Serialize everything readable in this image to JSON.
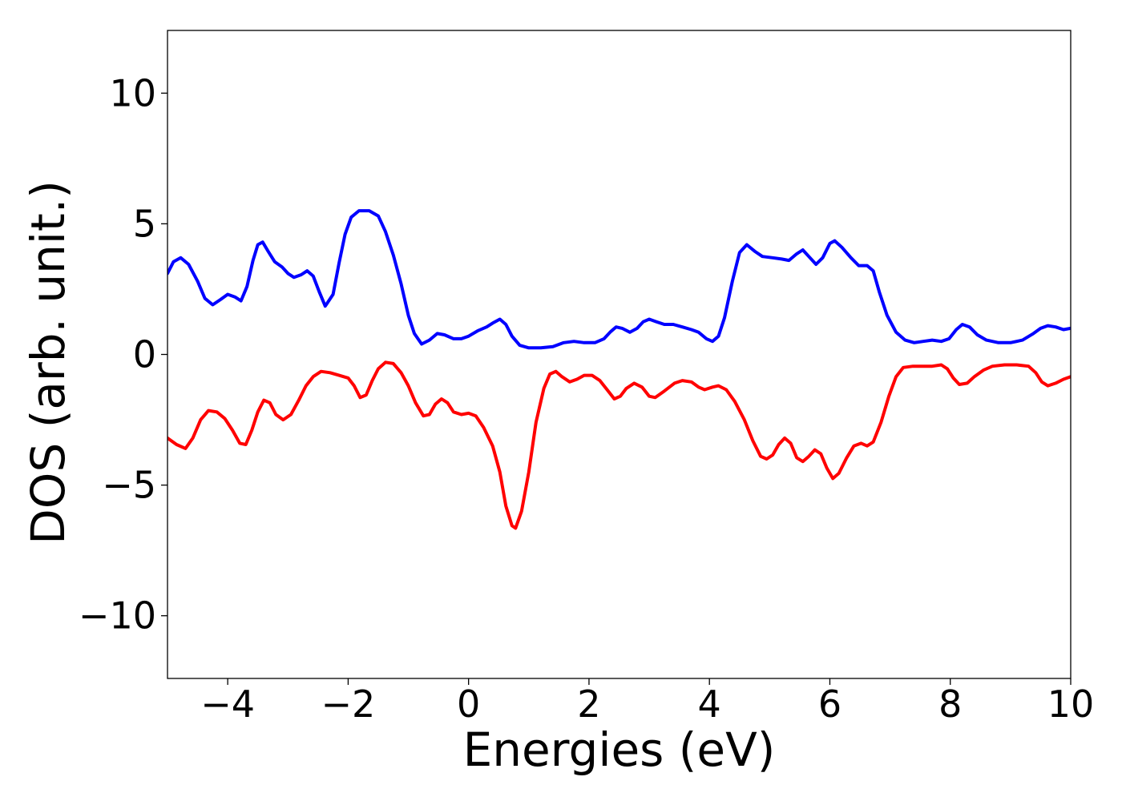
{
  "chart_data": {
    "type": "line",
    "title": "",
    "xlabel": "Energies (eV)",
    "ylabel": "DOS (arb. unit.)",
    "xlim": [
      -5,
      10
    ],
    "ylim": [
      -12.4,
      12.4
    ],
    "grid": false,
    "legend": "none",
    "x_ticks": [
      {
        "value": -4,
        "label": "−4"
      },
      {
        "value": -2,
        "label": "−2"
      },
      {
        "value": 0,
        "label": "0"
      },
      {
        "value": 2,
        "label": "2"
      },
      {
        "value": 4,
        "label": "4"
      },
      {
        "value": 6,
        "label": "6"
      },
      {
        "value": 8,
        "label": "8"
      },
      {
        "value": 10,
        "label": "10"
      }
    ],
    "y_ticks": [
      {
        "value": 10,
        "label": "10"
      },
      {
        "value": 5,
        "label": "5"
      },
      {
        "value": 0,
        "label": "0"
      },
      {
        "value": -5,
        "label": "−5"
      },
      {
        "value": -10,
        "label": "−10"
      }
    ],
    "series": [
      {
        "color": "#0000ff",
        "points": [
          [
            -5.0,
            3.1
          ],
          [
            -4.9,
            3.55
          ],
          [
            -4.78,
            3.7
          ],
          [
            -4.65,
            3.45
          ],
          [
            -4.5,
            2.8
          ],
          [
            -4.38,
            2.15
          ],
          [
            -4.25,
            1.9
          ],
          [
            -4.12,
            2.1
          ],
          [
            -4.0,
            2.3
          ],
          [
            -3.88,
            2.2
          ],
          [
            -3.78,
            2.05
          ],
          [
            -3.68,
            2.6
          ],
          [
            -3.58,
            3.6
          ],
          [
            -3.5,
            4.2
          ],
          [
            -3.42,
            4.3
          ],
          [
            -3.33,
            3.95
          ],
          [
            -3.22,
            3.55
          ],
          [
            -3.1,
            3.35
          ],
          [
            -3.0,
            3.1
          ],
          [
            -2.9,
            2.95
          ],
          [
            -2.78,
            3.05
          ],
          [
            -2.68,
            3.2
          ],
          [
            -2.58,
            3.0
          ],
          [
            -2.48,
            2.4
          ],
          [
            -2.38,
            1.85
          ],
          [
            -2.25,
            2.3
          ],
          [
            -2.15,
            3.5
          ],
          [
            -2.05,
            4.6
          ],
          [
            -1.95,
            5.25
          ],
          [
            -1.82,
            5.5
          ],
          [
            -1.65,
            5.5
          ],
          [
            -1.5,
            5.3
          ],
          [
            -1.38,
            4.7
          ],
          [
            -1.25,
            3.8
          ],
          [
            -1.12,
            2.7
          ],
          [
            -1.0,
            1.5
          ],
          [
            -0.9,
            0.8
          ],
          [
            -0.78,
            0.4
          ],
          [
            -0.65,
            0.55
          ],
          [
            -0.52,
            0.8
          ],
          [
            -0.4,
            0.75
          ],
          [
            -0.25,
            0.6
          ],
          [
            -0.12,
            0.6
          ],
          [
            0.0,
            0.7
          ],
          [
            0.15,
            0.9
          ],
          [
            0.3,
            1.05
          ],
          [
            0.4,
            1.2
          ],
          [
            0.52,
            1.35
          ],
          [
            0.62,
            1.15
          ],
          [
            0.72,
            0.7
          ],
          [
            0.85,
            0.35
          ],
          [
            1.0,
            0.25
          ],
          [
            1.2,
            0.25
          ],
          [
            1.4,
            0.3
          ],
          [
            1.58,
            0.45
          ],
          [
            1.75,
            0.5
          ],
          [
            1.92,
            0.45
          ],
          [
            2.1,
            0.45
          ],
          [
            2.25,
            0.6
          ],
          [
            2.35,
            0.85
          ],
          [
            2.45,
            1.05
          ],
          [
            2.55,
            1.0
          ],
          [
            2.68,
            0.85
          ],
          [
            2.8,
            1.0
          ],
          [
            2.9,
            1.25
          ],
          [
            3.0,
            1.35
          ],
          [
            3.12,
            1.25
          ],
          [
            3.25,
            1.15
          ],
          [
            3.4,
            1.15
          ],
          [
            3.55,
            1.05
          ],
          [
            3.7,
            0.95
          ],
          [
            3.82,
            0.85
          ],
          [
            3.95,
            0.6
          ],
          [
            4.05,
            0.5
          ],
          [
            4.15,
            0.7
          ],
          [
            4.25,
            1.4
          ],
          [
            4.38,
            2.8
          ],
          [
            4.5,
            3.9
          ],
          [
            4.62,
            4.2
          ],
          [
            4.75,
            3.95
          ],
          [
            4.88,
            3.75
          ],
          [
            5.05,
            3.7
          ],
          [
            5.2,
            3.65
          ],
          [
            5.32,
            3.6
          ],
          [
            5.45,
            3.85
          ],
          [
            5.55,
            4.0
          ],
          [
            5.65,
            3.75
          ],
          [
            5.77,
            3.45
          ],
          [
            5.88,
            3.7
          ],
          [
            6.0,
            4.25
          ],
          [
            6.08,
            4.35
          ],
          [
            6.2,
            4.1
          ],
          [
            6.35,
            3.7
          ],
          [
            6.48,
            3.4
          ],
          [
            6.62,
            3.4
          ],
          [
            6.72,
            3.2
          ],
          [
            6.82,
            2.4
          ],
          [
            6.95,
            1.5
          ],
          [
            7.1,
            0.85
          ],
          [
            7.25,
            0.55
          ],
          [
            7.4,
            0.45
          ],
          [
            7.55,
            0.5
          ],
          [
            7.7,
            0.55
          ],
          [
            7.85,
            0.5
          ],
          [
            7.98,
            0.6
          ],
          [
            8.1,
            0.95
          ],
          [
            8.2,
            1.15
          ],
          [
            8.32,
            1.05
          ],
          [
            8.45,
            0.75
          ],
          [
            8.6,
            0.55
          ],
          [
            8.8,
            0.45
          ],
          [
            9.0,
            0.45
          ],
          [
            9.2,
            0.55
          ],
          [
            9.38,
            0.8
          ],
          [
            9.5,
            1.0
          ],
          [
            9.62,
            1.1
          ],
          [
            9.75,
            1.05
          ],
          [
            9.88,
            0.95
          ],
          [
            10.0,
            1.0
          ]
        ]
      },
      {
        "color": "#ff0000",
        "points": [
          [
            -5.0,
            -3.2
          ],
          [
            -4.85,
            -3.45
          ],
          [
            -4.7,
            -3.6
          ],
          [
            -4.58,
            -3.2
          ],
          [
            -4.45,
            -2.5
          ],
          [
            -4.32,
            -2.15
          ],
          [
            -4.18,
            -2.2
          ],
          [
            -4.05,
            -2.45
          ],
          [
            -3.92,
            -2.9
          ],
          [
            -3.8,
            -3.4
          ],
          [
            -3.7,
            -3.45
          ],
          [
            -3.6,
            -2.9
          ],
          [
            -3.5,
            -2.2
          ],
          [
            -3.4,
            -1.75
          ],
          [
            -3.3,
            -1.85
          ],
          [
            -3.2,
            -2.3
          ],
          [
            -3.08,
            -2.5
          ],
          [
            -2.95,
            -2.3
          ],
          [
            -2.82,
            -1.75
          ],
          [
            -2.7,
            -1.2
          ],
          [
            -2.58,
            -0.85
          ],
          [
            -2.45,
            -0.65
          ],
          [
            -2.3,
            -0.7
          ],
          [
            -2.15,
            -0.8
          ],
          [
            -2.0,
            -0.9
          ],
          [
            -1.9,
            -1.2
          ],
          [
            -1.8,
            -1.65
          ],
          [
            -1.7,
            -1.55
          ],
          [
            -1.6,
            -1.0
          ],
          [
            -1.5,
            -0.55
          ],
          [
            -1.38,
            -0.3
          ],
          [
            -1.25,
            -0.35
          ],
          [
            -1.12,
            -0.7
          ],
          [
            -1.0,
            -1.2
          ],
          [
            -0.88,
            -1.85
          ],
          [
            -0.75,
            -2.35
          ],
          [
            -0.65,
            -2.3
          ],
          [
            -0.55,
            -1.9
          ],
          [
            -0.45,
            -1.7
          ],
          [
            -0.35,
            -1.85
          ],
          [
            -0.25,
            -2.2
          ],
          [
            -0.12,
            -2.3
          ],
          [
            0.0,
            -2.25
          ],
          [
            0.12,
            -2.35
          ],
          [
            0.25,
            -2.8
          ],
          [
            0.4,
            -3.5
          ],
          [
            0.52,
            -4.5
          ],
          [
            0.62,
            -5.8
          ],
          [
            0.72,
            -6.55
          ],
          [
            0.78,
            -6.65
          ],
          [
            0.88,
            -6.0
          ],
          [
            1.0,
            -4.5
          ],
          [
            1.12,
            -2.6
          ],
          [
            1.25,
            -1.3
          ],
          [
            1.35,
            -0.75
          ],
          [
            1.45,
            -0.65
          ],
          [
            1.55,
            -0.85
          ],
          [
            1.68,
            -1.05
          ],
          [
            1.8,
            -0.95
          ],
          [
            1.92,
            -0.8
          ],
          [
            2.05,
            -0.8
          ],
          [
            2.18,
            -1.0
          ],
          [
            2.3,
            -1.35
          ],
          [
            2.42,
            -1.7
          ],
          [
            2.52,
            -1.6
          ],
          [
            2.62,
            -1.3
          ],
          [
            2.75,
            -1.1
          ],
          [
            2.88,
            -1.25
          ],
          [
            3.0,
            -1.6
          ],
          [
            3.1,
            -1.65
          ],
          [
            3.25,
            -1.4
          ],
          [
            3.42,
            -1.1
          ],
          [
            3.55,
            -1.0
          ],
          [
            3.7,
            -1.05
          ],
          [
            3.82,
            -1.25
          ],
          [
            3.92,
            -1.35
          ],
          [
            4.05,
            -1.25
          ],
          [
            4.15,
            -1.2
          ],
          [
            4.28,
            -1.35
          ],
          [
            4.42,
            -1.8
          ],
          [
            4.58,
            -2.5
          ],
          [
            4.72,
            -3.3
          ],
          [
            4.85,
            -3.9
          ],
          [
            4.95,
            -4.0
          ],
          [
            5.05,
            -3.85
          ],
          [
            5.15,
            -3.45
          ],
          [
            5.25,
            -3.2
          ],
          [
            5.35,
            -3.4
          ],
          [
            5.45,
            -3.95
          ],
          [
            5.55,
            -4.1
          ],
          [
            5.65,
            -3.9
          ],
          [
            5.75,
            -3.65
          ],
          [
            5.85,
            -3.8
          ],
          [
            5.95,
            -4.35
          ],
          [
            6.05,
            -4.75
          ],
          [
            6.15,
            -4.55
          ],
          [
            6.28,
            -3.95
          ],
          [
            6.4,
            -3.5
          ],
          [
            6.52,
            -3.4
          ],
          [
            6.62,
            -3.5
          ],
          [
            6.72,
            -3.35
          ],
          [
            6.85,
            -2.6
          ],
          [
            6.98,
            -1.6
          ],
          [
            7.1,
            -0.85
          ],
          [
            7.22,
            -0.5
          ],
          [
            7.38,
            -0.45
          ],
          [
            7.55,
            -0.45
          ],
          [
            7.7,
            -0.45
          ],
          [
            7.85,
            -0.4
          ],
          [
            7.95,
            -0.55
          ],
          [
            8.05,
            -0.9
          ],
          [
            8.15,
            -1.15
          ],
          [
            8.28,
            -1.1
          ],
          [
            8.4,
            -0.85
          ],
          [
            8.55,
            -0.6
          ],
          [
            8.7,
            -0.45
          ],
          [
            8.9,
            -0.4
          ],
          [
            9.1,
            -0.4
          ],
          [
            9.3,
            -0.45
          ],
          [
            9.42,
            -0.7
          ],
          [
            9.52,
            -1.05
          ],
          [
            9.62,
            -1.2
          ],
          [
            9.75,
            -1.1
          ],
          [
            9.88,
            -0.95
          ],
          [
            10.0,
            -0.85
          ]
        ]
      }
    ]
  }
}
